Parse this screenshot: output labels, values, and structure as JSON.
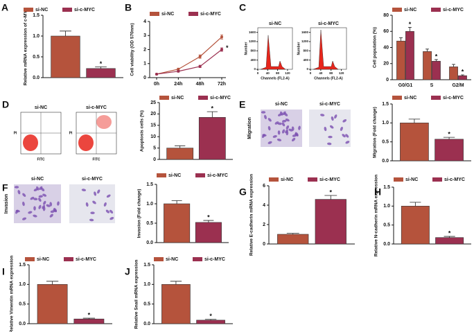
{
  "chart_data": [
    {
      "type": "bar",
      "label": "A",
      "ylabel": "Relative mRNA expression of c-MYC",
      "categories": [
        null
      ],
      "series": [
        {
          "name": "si-NC",
          "color": "#b5533c",
          "values": [
            1.0
          ],
          "errors": [
            0.12
          ]
        },
        {
          "name": "si-c-MYC",
          "color": "#9b3050",
          "values": [
            0.22
          ],
          "errors": [
            0.04
          ],
          "significance": [
            "*"
          ]
        }
      ],
      "ylim": [
        0,
        1.5
      ],
      "yticks": [
        {
          "value": 0,
          "label": "0.0"
        },
        {
          "value": 0.5,
          "label": "0.5"
        },
        {
          "value": 1.0,
          "label": "1.0"
        },
        {
          "value": 1.5,
          "label": "1.5"
        }
      ]
    },
    {
      "type": "line",
      "label": "B",
      "ylabel": "Cell viability (OD 570nm)",
      "categories": [
        "0h",
        "24h",
        "48h",
        "72h"
      ],
      "series": [
        {
          "name": "si-NC",
          "color": "#b5533c",
          "values": [
            0.25,
            0.6,
            1.5,
            2.9
          ],
          "errors": [
            0.05,
            0.08,
            0.12,
            0.15
          ]
        },
        {
          "name": "si-c-MYC",
          "color": "#9b3050",
          "values": [
            0.25,
            0.45,
            0.8,
            2.0
          ],
          "errors": [
            0.05,
            0.06,
            0.08,
            0.12
          ],
          "significance": [
            null,
            null,
            null,
            "*"
          ]
        }
      ],
      "ylim": [
        0,
        4
      ],
      "yticks": [
        0,
        1,
        2,
        3,
        4
      ]
    },
    {
      "type": "flow-histogram",
      "label": "C",
      "xlabel": "Channels (FL2-A)",
      "ylabel": "Number",
      "panels": [
        {
          "title": "si-NC"
        },
        {
          "title": "si-c-MYC"
        }
      ],
      "xlim": [
        0,
        140
      ],
      "xticks": [
        0,
        40,
        80,
        120
      ],
      "ylim": [
        0,
        1800
      ],
      "yticks": [
        0,
        400,
        800,
        1200,
        1600
      ]
    },
    {
      "type": "bar",
      "ylabel": "Cell population (%)",
      "categories": [
        "G0/G1",
        "S",
        "G2/M"
      ],
      "series": [
        {
          "name": "si-NC",
          "color": "#b5533c",
          "values": [
            48,
            35,
            16
          ],
          "errors": [
            4,
            3,
            3
          ]
        },
        {
          "name": "si-c-MYC",
          "color": "#9b3050",
          "values": [
            60,
            23,
            5
          ],
          "errors": [
            5,
            2,
            1
          ],
          "significance": [
            "*",
            "*",
            "*"
          ]
        }
      ],
      "ylim": [
        0,
        80
      ],
      "yticks": [
        0,
        20,
        40,
        60,
        80
      ]
    },
    {
      "type": "flow-scatter",
      "label": "D",
      "xlabel": "FITC",
      "ylabel": "PI",
      "panels": [
        {
          "title": "si-NC"
        },
        {
          "title": "si-c-MYC"
        }
      ]
    },
    {
      "type": "bar",
      "ylabel": "Apoptosis cells (%)",
      "categories": [
        null
      ],
      "series": [
        {
          "name": "si-NC",
          "color": "#b5533c",
          "values": [
            5
          ],
          "errors": [
            1
          ]
        },
        {
          "name": "si-c-MYC",
          "color": "#9b3050",
          "values": [
            18.5
          ],
          "errors": [
            2.5
          ],
          "significance": [
            "*"
          ]
        }
      ],
      "ylim": [
        0,
        25
      ],
      "yticks": [
        0,
        5,
        10,
        15,
        20,
        25
      ]
    },
    {
      "type": "micrograph",
      "label": "E",
      "ylabel": "Migration",
      "panels": [
        {
          "title": "si-NC"
        },
        {
          "title": "si-c-MYC"
        }
      ]
    },
    {
      "type": "bar",
      "ylabel": "Migration (Fold change)",
      "categories": [
        null
      ],
      "series": [
        {
          "name": "si-NC",
          "color": "#b5533c",
          "values": [
            1.0
          ],
          "errors": [
            0.1
          ]
        },
        {
          "name": "si-c-MYC",
          "color": "#9b3050",
          "values": [
            0.57
          ],
          "errors": [
            0.05
          ],
          "significance": [
            "*"
          ]
        }
      ],
      "ylim": [
        0,
        1.5
      ],
      "yticks": [
        {
          "value": 0,
          "label": "0.0"
        },
        {
          "value": 0.5,
          "label": "0.5"
        },
        {
          "value": 1.0,
          "label": "1.0"
        },
        {
          "value": 1.5,
          "label": "1.5"
        }
      ]
    },
    {
      "type": "micrograph",
      "label": "F",
      "ylabel": "Invasion",
      "panels": [
        {
          "title": "si-NC"
        },
        {
          "title": "si-c-MYC"
        }
      ]
    },
    {
      "type": "bar",
      "ylabel": "Invasion (Fold change)",
      "categories": [
        null
      ],
      "series": [
        {
          "name": "si-NC",
          "color": "#b5533c",
          "values": [
            1.0
          ],
          "errors": [
            0.08
          ]
        },
        {
          "name": "si-c-MYC",
          "color": "#9b3050",
          "values": [
            0.52
          ],
          "errors": [
            0.05
          ],
          "significance": [
            "*"
          ]
        }
      ],
      "ylim": [
        0,
        1.5
      ],
      "yticks": [
        {
          "value": 0,
          "label": "0.0"
        },
        {
          "value": 0.5,
          "label": "0.5"
        },
        {
          "value": 1.0,
          "label": "1.0"
        },
        {
          "value": 1.5,
          "label": "1.5"
        }
      ]
    },
    {
      "type": "bar",
      "label": "G",
      "ylabel": "Relative E-cadherin mRNA expression",
      "categories": [
        null
      ],
      "series": [
        {
          "name": "si-NC",
          "color": "#b5533c",
          "values": [
            1.0
          ],
          "errors": [
            0.1
          ]
        },
        {
          "name": "si-c-MYC",
          "color": "#9b3050",
          "values": [
            4.6
          ],
          "errors": [
            0.4
          ],
          "significance": [
            "*"
          ]
        }
      ],
      "ylim": [
        0,
        6
      ],
      "yticks": [
        0,
        2,
        4,
        6
      ]
    },
    {
      "type": "bar",
      "label": "H",
      "ylabel": "Relative N-cadherin mRNA expression",
      "categories": [
        null
      ],
      "series": [
        {
          "name": "si-NC",
          "color": "#b5533c",
          "values": [
            1.0
          ],
          "errors": [
            0.1
          ]
        },
        {
          "name": "si-c-MYC",
          "color": "#9b3050",
          "values": [
            0.17
          ],
          "errors": [
            0.03
          ],
          "significance": [
            "*"
          ]
        }
      ],
      "ylim": [
        0,
        1.5
      ],
      "yticks": [
        {
          "value": 0,
          "label": "0.0"
        },
        {
          "value": 0.5,
          "label": "0.5"
        },
        {
          "value": 1.0,
          "label": "1.0"
        },
        {
          "value": 1.5,
          "label": "1.5"
        }
      ]
    },
    {
      "type": "bar",
      "label": "I",
      "ylabel": "Relative Vimentin mRNA expression",
      "categories": [
        null
      ],
      "series": [
        {
          "name": "si-NC",
          "color": "#b5533c",
          "values": [
            1.0
          ],
          "errors": [
            0.08
          ]
        },
        {
          "name": "si-c-MYC",
          "color": "#9b3050",
          "values": [
            0.12
          ],
          "errors": [
            0.02
          ],
          "significance": [
            "*"
          ]
        }
      ],
      "ylim": [
        0,
        1.5
      ],
      "yticks": [
        {
          "value": 0,
          "label": "0.0"
        },
        {
          "value": 0.5,
          "label": "0.5"
        },
        {
          "value": 1.0,
          "label": "1.0"
        },
        {
          "value": 1.5,
          "label": "1.5"
        }
      ]
    },
    {
      "type": "bar",
      "label": "J",
      "ylabel": "Relative Snail mRNA expression",
      "categories": [
        null
      ],
      "series": [
        {
          "name": "si-NC",
          "color": "#b5533c",
          "values": [
            1.0
          ],
          "errors": [
            0.08
          ]
        },
        {
          "name": "si-c-MYC",
          "color": "#9b3050",
          "values": [
            0.09
          ],
          "errors": [
            0.02
          ],
          "significance": [
            "*"
          ]
        }
      ],
      "ylim": [
        0,
        1.5
      ],
      "yticks": [
        {
          "value": 0,
          "label": "0.0"
        },
        {
          "value": 0.5,
          "label": "0.5"
        },
        {
          "value": 1.0,
          "label": "1.0"
        },
        {
          "value": 1.5,
          "label": "1.5"
        }
      ]
    }
  ]
}
